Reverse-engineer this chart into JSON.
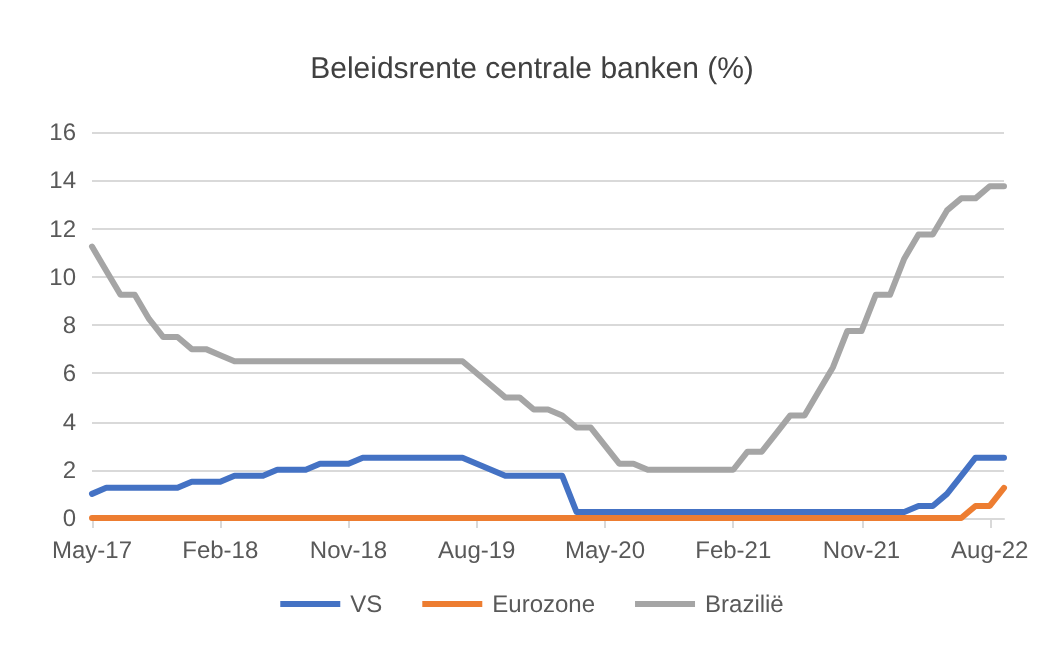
{
  "chart_data": {
    "type": "line",
    "title": "Beleidsrente centrale banken (%)",
    "categories": [
      "May-17",
      null,
      null,
      null,
      null,
      null,
      null,
      null,
      null,
      "Feb-18",
      null,
      null,
      null,
      null,
      null,
      null,
      null,
      null,
      "Nov-18",
      null,
      null,
      null,
      null,
      null,
      null,
      null,
      null,
      "Aug-19",
      null,
      null,
      null,
      null,
      null,
      null,
      null,
      null,
      "May-20",
      null,
      null,
      null,
      null,
      null,
      null,
      null,
      null,
      "Feb-21",
      null,
      null,
      null,
      null,
      null,
      null,
      null,
      null,
      "Nov-21",
      null,
      null,
      null,
      null,
      null,
      null,
      null,
      null,
      "Aug-22",
      null
    ],
    "series": [
      {
        "name": "VS",
        "color": "#4472c4",
        "values": [
          1.0,
          1.25,
          1.25,
          1.25,
          1.25,
          1.25,
          1.25,
          1.5,
          1.5,
          1.5,
          1.75,
          1.75,
          1.75,
          2.0,
          2.0,
          2.0,
          2.25,
          2.25,
          2.25,
          2.5,
          2.5,
          2.5,
          2.5,
          2.5,
          2.5,
          2.5,
          2.5,
          2.25,
          2.0,
          1.75,
          1.75,
          1.75,
          1.75,
          1.75,
          0.25,
          0.25,
          0.25,
          0.25,
          0.25,
          0.25,
          0.25,
          0.25,
          0.25,
          0.25,
          0.25,
          0.25,
          0.25,
          0.25,
          0.25,
          0.25,
          0.25,
          0.25,
          0.25,
          0.25,
          0.25,
          0.25,
          0.25,
          0.25,
          0.5,
          0.5,
          1.0,
          1.75,
          2.5,
          2.5,
          2.5
        ]
      },
      {
        "name": "Eurozone",
        "color": "#ed7d31",
        "values": [
          0,
          0,
          0,
          0,
          0,
          0,
          0,
          0,
          0,
          0,
          0,
          0,
          0,
          0,
          0,
          0,
          0,
          0,
          0,
          0,
          0,
          0,
          0,
          0,
          0,
          0,
          0,
          0,
          0,
          0,
          0,
          0,
          0,
          0,
          0,
          0,
          0,
          0,
          0,
          0,
          0,
          0,
          0,
          0,
          0,
          0,
          0,
          0,
          0,
          0,
          0,
          0,
          0,
          0,
          0,
          0,
          0,
          0,
          0,
          0,
          0,
          0,
          0.5,
          0.5,
          1.25
        ]
      },
      {
        "name": "Brazilië",
        "color": "#a5a5a5",
        "values": [
          11.25,
          10.25,
          9.25,
          9.25,
          8.25,
          7.5,
          7.5,
          7.0,
          7.0,
          6.75,
          6.5,
          6.5,
          6.5,
          6.5,
          6.5,
          6.5,
          6.5,
          6.5,
          6.5,
          6.5,
          6.5,
          6.5,
          6.5,
          6.5,
          6.5,
          6.5,
          6.5,
          6.0,
          5.5,
          5.0,
          5.0,
          4.5,
          4.5,
          4.25,
          3.75,
          3.75,
          3.0,
          2.25,
          2.25,
          2.0,
          2.0,
          2.0,
          2.0,
          2.0,
          2.0,
          2.0,
          2.75,
          2.75,
          3.5,
          4.25,
          4.25,
          5.25,
          6.25,
          7.75,
          7.75,
          9.25,
          9.25,
          10.75,
          11.75,
          11.75,
          12.75,
          13.25,
          13.25,
          13.75,
          13.75
        ]
      }
    ],
    "ylim": [
      0,
      16
    ],
    "yticks": [
      0,
      2,
      4,
      6,
      8,
      10,
      12,
      14,
      16
    ],
    "grid": "y",
    "legend": "bottom",
    "marker": "none",
    "line_style": "solid"
  }
}
